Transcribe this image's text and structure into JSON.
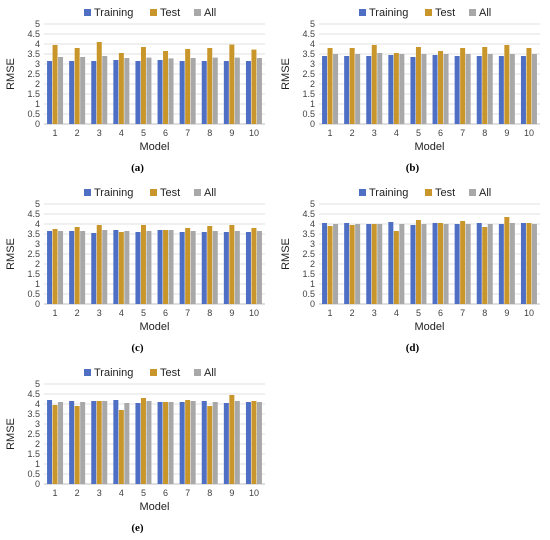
{
  "colors": {
    "training": "#4f6fc4",
    "test": "#c9962b",
    "all": "#a8a8a8",
    "grid": "#d9d9d9"
  },
  "chart_data": [
    {
      "type": "bar",
      "caption": "(a)",
      "xlabel": "Model",
      "ylabel": "RMSE",
      "ylim": [
        0,
        5
      ],
      "yticks": [
        "0",
        "0.5",
        "1",
        "1.5",
        "2",
        "2.5",
        "3",
        "3.5",
        "4",
        "4.5",
        "5"
      ],
      "grid": true,
      "legend": "top-center",
      "categories": [
        "1",
        "2",
        "3",
        "4",
        "5",
        "6",
        "7",
        "8",
        "9",
        "10"
      ],
      "series": [
        {
          "name": "Training",
          "values": [
            3.15,
            3.15,
            3.15,
            3.2,
            3.15,
            3.2,
            3.15,
            3.15,
            3.15,
            3.15
          ]
        },
        {
          "name": "Test",
          "values": [
            3.95,
            3.8,
            4.1,
            3.55,
            3.85,
            3.65,
            3.75,
            3.8,
            3.97,
            3.72
          ]
        },
        {
          "name": "All",
          "values": [
            3.35,
            3.35,
            3.4,
            3.3,
            3.32,
            3.28,
            3.3,
            3.32,
            3.32,
            3.3
          ]
        }
      ]
    },
    {
      "type": "bar",
      "caption": "(b)",
      "xlabel": "Model",
      "ylabel": "RMSE",
      "ylim": [
        0,
        5
      ],
      "yticks": [
        "0",
        "0.5",
        "1",
        "1.5",
        "2",
        "2.5",
        "3",
        "3.5",
        "4",
        "4.5",
        "5"
      ],
      "grid": true,
      "legend": "top-center",
      "categories": [
        "1",
        "2",
        "3",
        "4",
        "5",
        "6",
        "7",
        "8",
        "9",
        "10"
      ],
      "series": [
        {
          "name": "Training",
          "values": [
            3.4,
            3.4,
            3.4,
            3.45,
            3.35,
            3.45,
            3.4,
            3.4,
            3.4,
            3.4
          ]
        },
        {
          "name": "Test",
          "values": [
            3.8,
            3.8,
            3.95,
            3.55,
            3.85,
            3.65,
            3.8,
            3.85,
            3.95,
            3.8
          ]
        },
        {
          "name": "All",
          "values": [
            3.5,
            3.5,
            3.55,
            3.5,
            3.5,
            3.5,
            3.5,
            3.5,
            3.5,
            3.5
          ]
        }
      ]
    },
    {
      "type": "bar",
      "caption": "(c)",
      "xlabel": "Model",
      "ylabel": "RMSE",
      "ylim": [
        0,
        5
      ],
      "yticks": [
        "0",
        "0.5",
        "1",
        "1.5",
        "2",
        "2.5",
        "3",
        "3.5",
        "4",
        "4.5",
        "5"
      ],
      "grid": true,
      "legend": "top-center",
      "categories": [
        "1",
        "2",
        "3",
        "4",
        "5",
        "6",
        "7",
        "8",
        "9",
        "10"
      ],
      "series": [
        {
          "name": "Training",
          "values": [
            3.65,
            3.65,
            3.55,
            3.7,
            3.6,
            3.7,
            3.6,
            3.6,
            3.6,
            3.6
          ]
        },
        {
          "name": "Test",
          "values": [
            3.75,
            3.85,
            3.95,
            3.6,
            3.95,
            3.7,
            3.8,
            3.9,
            3.95,
            3.8
          ]
        },
        {
          "name": "All",
          "values": [
            3.65,
            3.65,
            3.7,
            3.65,
            3.65,
            3.7,
            3.65,
            3.65,
            3.65,
            3.65
          ]
        }
      ]
    },
    {
      "type": "bar",
      "caption": "(d)",
      "xlabel": "Model",
      "ylabel": "RMSE",
      "ylim": [
        0,
        5
      ],
      "yticks": [
        "0",
        "0.5",
        "1",
        "1.5",
        "2",
        "2.5",
        "3",
        "3.5",
        "4",
        "4.5",
        "5"
      ],
      "grid": true,
      "legend": "top-center",
      "categories": [
        "1",
        "2",
        "3",
        "4",
        "5",
        "6",
        "7",
        "8",
        "9",
        "10"
      ],
      "series": [
        {
          "name": "Training",
          "values": [
            4.05,
            4.05,
            4.0,
            4.1,
            3.95,
            4.05,
            4.0,
            4.05,
            4.0,
            4.05
          ]
        },
        {
          "name": "Test",
          "values": [
            3.9,
            3.95,
            4.0,
            3.65,
            4.2,
            4.05,
            4.15,
            3.85,
            4.35,
            4.05
          ]
        },
        {
          "name": "All",
          "values": [
            4.0,
            4.0,
            4.0,
            4.0,
            4.0,
            4.0,
            4.0,
            4.0,
            4.05,
            4.0
          ]
        }
      ]
    },
    {
      "type": "bar",
      "caption": "(e)",
      "xlabel": "Model",
      "ylabel": "RMSE",
      "ylim": [
        0,
        5
      ],
      "yticks": [
        "0",
        "0.5",
        "1",
        "1.5",
        "2",
        "2.5",
        "3",
        "3.5",
        "4",
        "4.5",
        "5"
      ],
      "grid": true,
      "legend": "top-center",
      "categories": [
        "1",
        "2",
        "3",
        "4",
        "5",
        "6",
        "7",
        "8",
        "9",
        "10"
      ],
      "series": [
        {
          "name": "Training",
          "values": [
            4.2,
            4.15,
            4.15,
            4.2,
            4.05,
            4.1,
            4.1,
            4.15,
            4.05,
            4.1
          ]
        },
        {
          "name": "Test",
          "values": [
            3.95,
            3.9,
            4.15,
            3.7,
            4.3,
            4.1,
            4.2,
            3.9,
            4.45,
            4.15
          ]
        },
        {
          "name": "All",
          "values": [
            4.1,
            4.1,
            4.15,
            4.05,
            4.15,
            4.1,
            4.15,
            4.1,
            4.15,
            4.1
          ]
        }
      ]
    }
  ]
}
